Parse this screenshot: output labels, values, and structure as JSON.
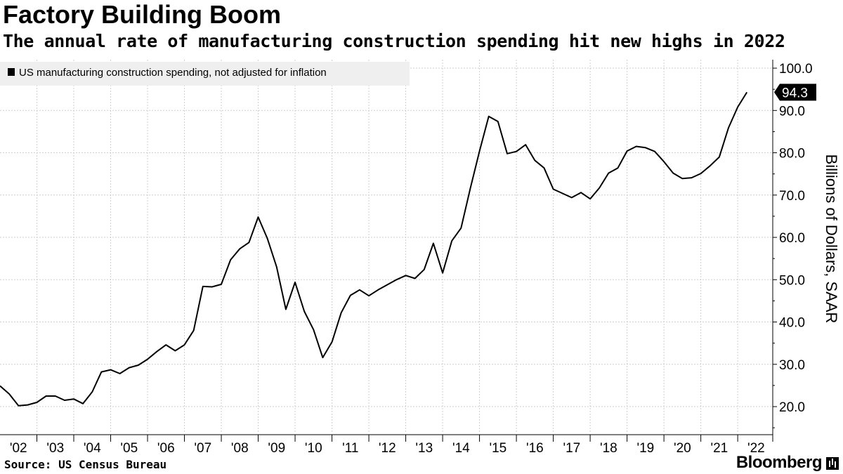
{
  "chart_data": {
    "type": "line",
    "title": "Factory Building Boom",
    "subtitle": "The annual rate of manufacturing construction spending hit new highs in 2022",
    "ylabel": "Billions of Dollars, SAAR",
    "ylim": [
      13.7,
      102
    ],
    "yticks": [
      20,
      30,
      40,
      50,
      60,
      70,
      80,
      90,
      100
    ],
    "ytick_labels": [
      "20.0",
      "30.0",
      "40.0",
      "50.0",
      "60.0",
      "70.0",
      "80.0",
      "90.0",
      "100.0"
    ],
    "xlim": [
      2002.0,
      2022.95
    ],
    "xtick_labels": [
      "'02",
      "'03",
      "'04",
      "'05",
      "'06",
      "'07",
      "'08",
      "'09",
      "'10",
      "'11",
      "'12",
      "'13",
      "'14",
      "'15",
      "'16",
      "'17",
      "'18",
      "'19",
      "'20",
      "'21",
      "'22"
    ],
    "grid": true,
    "legend_position": "top-left",
    "last_value_label": "94.3",
    "series": [
      {
        "name": "US manufacturing construction spending, not adjusted for inflation",
        "color": "#000000",
        "x": [
          2002.0,
          2002.25,
          2002.5,
          2002.75,
          2003.0,
          2003.25,
          2003.5,
          2003.75,
          2004.0,
          2004.25,
          2004.5,
          2004.75,
          2005.0,
          2005.25,
          2005.5,
          2005.75,
          2006.0,
          2006.25,
          2006.5,
          2006.75,
          2007.0,
          2007.25,
          2007.5,
          2007.75,
          2008.0,
          2008.25,
          2008.5,
          2008.75,
          2009.0,
          2009.25,
          2009.5,
          2009.75,
          2010.0,
          2010.25,
          2010.5,
          2010.75,
          2011.0,
          2011.25,
          2011.5,
          2011.75,
          2012.0,
          2012.25,
          2012.5,
          2012.75,
          2013.0,
          2013.25,
          2013.5,
          2013.75,
          2014.0,
          2014.25,
          2014.5,
          2014.75,
          2015.0,
          2015.25,
          2015.5,
          2015.75,
          2016.0,
          2016.25,
          2016.5,
          2016.75,
          2017.0,
          2017.25,
          2017.5,
          2017.75,
          2018.0,
          2018.25,
          2018.5,
          2018.75,
          2019.0,
          2019.25,
          2019.5,
          2019.75,
          2020.0,
          2020.25,
          2020.5,
          2020.75,
          2021.0,
          2021.25,
          2021.5,
          2021.75,
          2022.0,
          2022.25
        ],
        "values": [
          24.9,
          23.0,
          20.2,
          20.4,
          21.0,
          22.5,
          22.5,
          21.5,
          21.8,
          20.7,
          23.5,
          28.2,
          28.7,
          27.8,
          29.2,
          29.8,
          31.2,
          33.0,
          34.6,
          33.2,
          34.6,
          38.0,
          48.4,
          48.3,
          48.9,
          54.7,
          57.3,
          58.8,
          64.8,
          59.7,
          53.0,
          43.0,
          49.4,
          42.5,
          38.2,
          31.6,
          35.3,
          42.2,
          46.3,
          47.6,
          46.2,
          47.6,
          48.8,
          50.0,
          51.0,
          50.3,
          52.4,
          58.6,
          51.6,
          59.2,
          62.2,
          71.6,
          80.4,
          88.6,
          87.4,
          79.8,
          80.3,
          81.9,
          78.2,
          76.4,
          71.4,
          70.4,
          69.4,
          70.6,
          69.1,
          71.7,
          75.2,
          76.4,
          80.4,
          81.5,
          81.2,
          80.3,
          77.9,
          75.2,
          73.9,
          74.1,
          75.1,
          76.9,
          79.0,
          85.9,
          90.8,
          94.3
        ]
      }
    ]
  },
  "source": "Source: US Census Bureau",
  "brand": "Bloomberg"
}
